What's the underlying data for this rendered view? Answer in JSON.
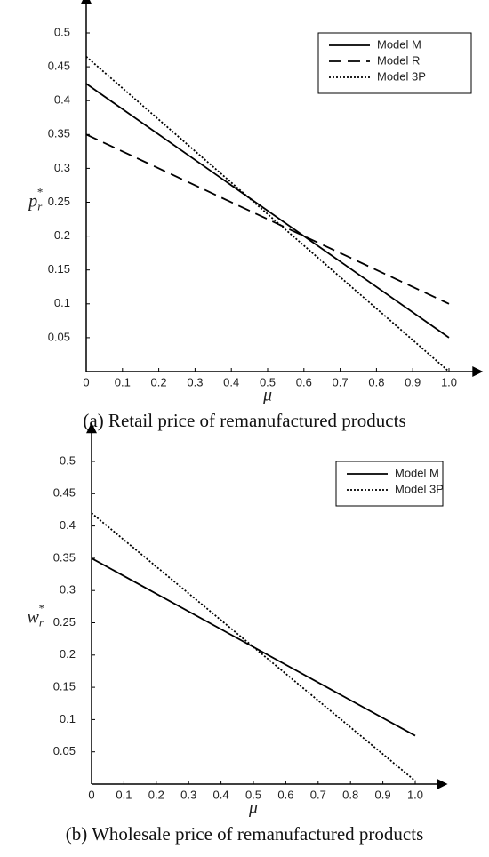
{
  "chart_data": [
    {
      "type": "line",
      "caption": "(a) Retail price of remanufactured products",
      "xlabel": "μ",
      "ylabel": "p",
      "ylabel_sub": "r",
      "ylabel_sup": "*",
      "x": [
        0,
        1
      ],
      "series": [
        {
          "name": "Model M",
          "color": "#000000",
          "dash": "solid",
          "values": [
            0.425,
            0.05
          ]
        },
        {
          "name": "Model R",
          "color": "#000000",
          "dash": "dashed",
          "values": [
            0.35,
            0.1
          ]
        },
        {
          "name": "Model 3P",
          "color": "#000000",
          "dash": "dotted",
          "values": [
            0.465,
            0.0
          ]
        }
      ],
      "xlim": [
        0,
        1.04
      ],
      "ylim": [
        0,
        0.53
      ],
      "xticks": [
        0,
        0.1,
        0.2,
        0.3,
        0.4,
        0.5,
        0.6,
        0.7,
        0.8,
        0.9,
        {
          "value": 1,
          "label": "1.0"
        }
      ],
      "yticks": [
        0.05,
        0.1,
        0.15,
        0.2,
        0.25,
        0.3,
        0.35,
        0.4,
        0.45,
        0.5
      ],
      "grid": false,
      "legend": "top-right"
    },
    {
      "type": "line",
      "caption": "(b) Wholesale price of remanufactured products",
      "xlabel": "μ",
      "ylabel": "w",
      "ylabel_sub": "r",
      "ylabel_sup": "*",
      "x": [
        0,
        1
      ],
      "series": [
        {
          "name": "Model M",
          "color": "#000000",
          "dash": "solid",
          "values": [
            0.35,
            0.075
          ]
        },
        {
          "name": "Model 3P",
          "color": "#000000",
          "dash": "dotted",
          "values": [
            0.42,
            0.005
          ]
        }
      ],
      "xlim": [
        0,
        1.04
      ],
      "ylim": [
        0,
        0.53
      ],
      "xticks": [
        0,
        0.1,
        0.2,
        0.3,
        0.4,
        0.5,
        0.6,
        0.7,
        0.8,
        0.9,
        {
          "value": 1,
          "label": "1.0"
        }
      ],
      "yticks": [
        0.05,
        0.1,
        0.15,
        0.2,
        0.25,
        0.3,
        0.35,
        0.4,
        0.45,
        0.5
      ],
      "grid": false,
      "legend": "top-right"
    }
  ]
}
